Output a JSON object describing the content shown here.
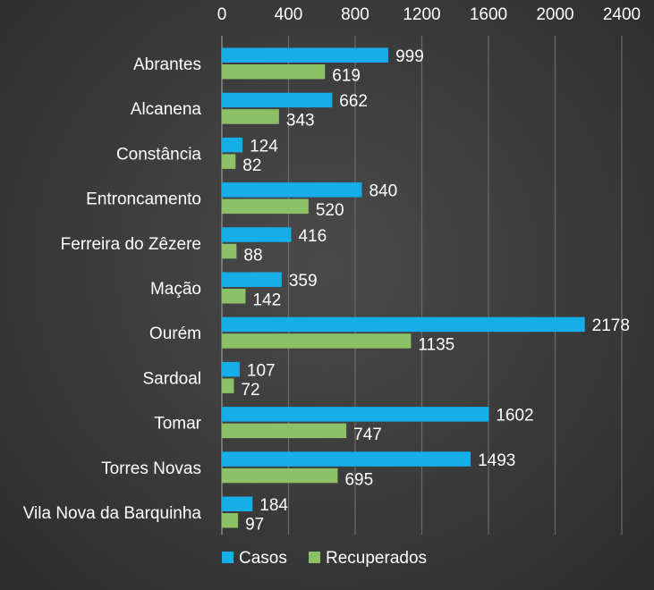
{
  "chart_data": {
    "type": "bar",
    "orientation": "horizontal",
    "categories": [
      "Abrantes",
      "Alcanena",
      "Constância",
      "Entroncamento",
      "Ferreira do Zêzere",
      "Mação",
      "Ourém",
      "Sardoal",
      "Tomar",
      "Torres Novas",
      "Vila Nova da Barquinha"
    ],
    "series": [
      {
        "name": "Casos",
        "color": "#16aee8",
        "values": [
          999,
          662,
          124,
          840,
          416,
          359,
          2178,
          107,
          1602,
          1493,
          184
        ]
      },
      {
        "name": "Recuperados",
        "color": "#8cc168",
        "values": [
          619,
          343,
          82,
          520,
          88,
          142,
          1135,
          72,
          747,
          695,
          97
        ]
      }
    ],
    "xlim": [
      0,
      2400
    ],
    "xticks": [
      0,
      400,
      800,
      1200,
      1600,
      2000,
      2400
    ],
    "axis_position": "top",
    "grid": true,
    "legend_position": "bottom-left",
    "data_labels": true
  }
}
